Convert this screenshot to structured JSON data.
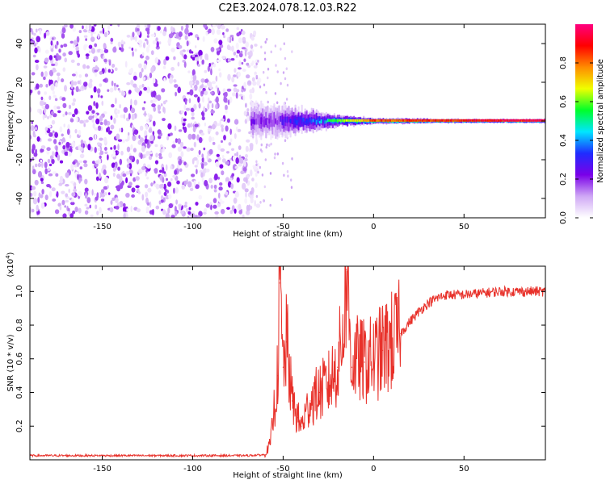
{
  "title": "C2E3.2024.078.12.03.R22",
  "chart_data": [
    {
      "type": "heatmap",
      "xlabel": "Height of straight line (km)",
      "ylabel": "Frequency (Hz)",
      "xlim": [
        -190,
        95
      ],
      "ylim": [
        -50,
        50
      ],
      "xticks": [
        -150,
        -100,
        -50,
        0,
        50
      ],
      "yticks": [
        -40,
        -20,
        0,
        20,
        40
      ],
      "grid": false,
      "colorbar": {
        "label": "Normalized spectral amplitude",
        "range": [
          0,
          1
        ],
        "ticks": [
          "0.0",
          "0.2",
          "0.4",
          "0.6",
          "0.8"
        ],
        "colors": [
          "#ffffff",
          "#cfa8f5",
          "#7a00e8",
          "#1f2cff",
          "#00e6ff",
          "#00ff2a",
          "#f0ff00",
          "#ff8c00",
          "#ff0000",
          "#ff0080"
        ]
      },
      "features": {
        "noise_region_x": [
          -190,
          -65
        ],
        "signal_center_freq_hz": 0,
        "signal_spread_hz_at": [
          [
            -55,
            8
          ],
          [
            -40,
            6
          ],
          [
            -20,
            3
          ],
          [
            0,
            1.5
          ],
          [
            50,
            1
          ],
          [
            95,
            1
          ]
        ],
        "signal_peak_amplitude_at": [
          [
            -55,
            0.25
          ],
          [
            -40,
            0.4
          ],
          [
            -20,
            0.55
          ],
          [
            0,
            0.8
          ],
          [
            50,
            0.85
          ],
          [
            95,
            0.95
          ]
        ]
      }
    },
    {
      "type": "line",
      "xlabel": "Height of straight line (km)",
      "ylabel": "SNR (10 * v/v)",
      "scale_label": "(x10",
      "scale_exponent": "4",
      "xlim": [
        -190,
        95
      ],
      "ylim": [
        0,
        1.15
      ],
      "xticks": [
        -150,
        -100,
        -50,
        0,
        50
      ],
      "yticks": [
        "0.2",
        "0.4",
        "0.6",
        "0.8",
        "1.0"
      ],
      "grid": false,
      "series": [
        {
          "color": "#e8312a",
          "x": [
            -190,
            -150,
            -100,
            -70,
            -60,
            -57,
            -55,
            -53,
            -52,
            -50,
            -48,
            -45,
            -42,
            -40,
            -35,
            -30,
            -25,
            -20,
            -17,
            -15,
            -12,
            -10,
            -5,
            0,
            5,
            10,
            15,
            20,
            25,
            30,
            35,
            40,
            50,
            60,
            70,
            80,
            90,
            95
          ],
          "values": [
            0.025,
            0.025,
            0.025,
            0.025,
            0.03,
            0.1,
            0.3,
            0.5,
            1.05,
            0.55,
            0.7,
            0.35,
            0.25,
            0.2,
            0.35,
            0.4,
            0.45,
            0.55,
            0.75,
            1.13,
            0.55,
            0.6,
            0.58,
            0.6,
            0.65,
            0.7,
            0.75,
            0.82,
            0.88,
            0.93,
            0.96,
            0.98,
            0.98,
            0.99,
            1.0,
            1.0,
            1.0,
            1.0
          ]
        }
      ]
    }
  ]
}
